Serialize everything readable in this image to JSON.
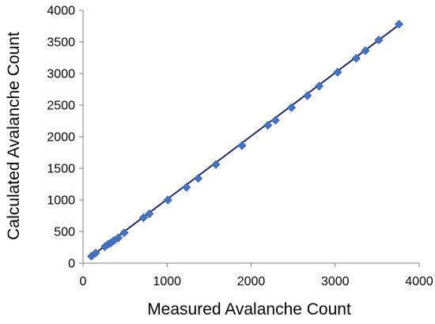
{
  "chart_data": {
    "type": "scatter",
    "xlabel": "Measured Avalanche Count",
    "ylabel": "Calculated Avalanche Count",
    "xlim": [
      0,
      4000
    ],
    "ylim": [
      0,
      4000
    ],
    "xticks": [
      0,
      1000,
      2000,
      3000,
      4000
    ],
    "yticks": [
      0,
      500,
      1000,
      1500,
      2000,
      2500,
      3000,
      3500,
      4000
    ],
    "grid": false,
    "legend": "none",
    "marker_color": "#4472C4",
    "line_color": "#1F2D6B",
    "series": [
      {
        "points": [
          [
            100,
            110
          ],
          [
            150,
            160
          ],
          [
            260,
            260
          ],
          [
            300,
            300
          ],
          [
            330,
            320
          ],
          [
            370,
            360
          ],
          [
            420,
            400
          ],
          [
            490,
            480
          ],
          [
            720,
            720
          ],
          [
            790,
            780
          ],
          [
            1010,
            1000
          ],
          [
            1230,
            1200
          ],
          [
            1370,
            1340
          ],
          [
            1580,
            1560
          ],
          [
            1890,
            1860
          ],
          [
            2200,
            2180
          ],
          [
            2290,
            2260
          ],
          [
            2480,
            2460
          ],
          [
            2670,
            2650
          ],
          [
            2810,
            2800
          ],
          [
            3030,
            3020
          ],
          [
            3250,
            3240
          ],
          [
            3360,
            3360
          ],
          [
            3520,
            3530
          ],
          [
            3760,
            3780
          ]
        ]
      }
    ],
    "trendline": {
      "from": [
        80,
        90
      ],
      "to": [
        3760,
        3770
      ]
    }
  }
}
